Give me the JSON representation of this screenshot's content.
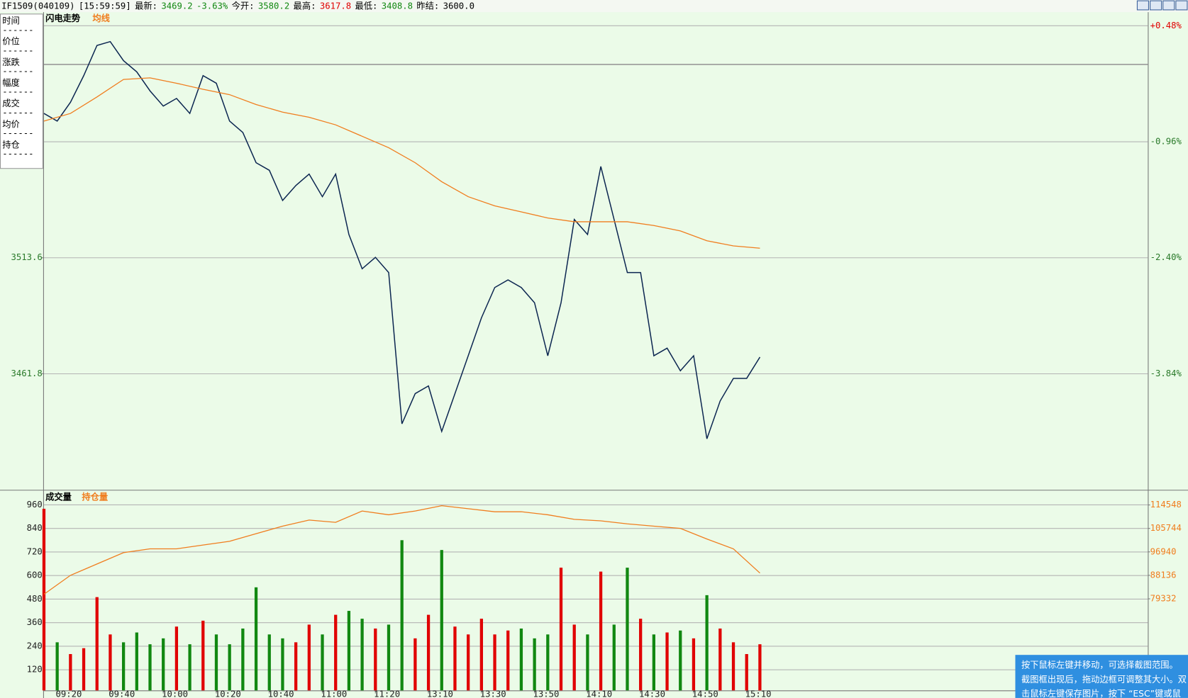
{
  "header": [
    {
      "text": "IF1509(040109)",
      "color": "#000000"
    },
    {
      "text": "[15:59:59]",
      "color": "#000000"
    },
    {
      "text": "最新:",
      "color": "#000000"
    },
    {
      "text": "3469.2",
      "color": "#118811"
    },
    {
      "text": "-3.63%",
      "color": "#118811"
    },
    {
      "text": "今开:",
      "color": "#000000"
    },
    {
      "text": "3580.2",
      "color": "#118811"
    },
    {
      "text": "最高:",
      "color": "#000000"
    },
    {
      "text": "3617.8",
      "color": "#e00000"
    },
    {
      "text": "最低:",
      "color": "#000000"
    },
    {
      "text": "3408.8",
      "color": "#118811"
    },
    {
      "text": "昨结:",
      "color": "#000000"
    },
    {
      "text": "3600.0",
      "color": "#000000"
    }
  ],
  "side_panel": [
    {
      "label": "时间",
      "value": "------"
    },
    {
      "label": "价位",
      "value": "------"
    },
    {
      "label": "涨跌",
      "value": "------"
    },
    {
      "label": "幅度",
      "value": "------"
    },
    {
      "label": "成交",
      "value": "------"
    },
    {
      "label": "均价",
      "value": "------"
    },
    {
      "label": "持仓",
      "value": "------"
    }
  ],
  "chart_data": [
    {
      "type": "line",
      "title": "闪电走势",
      "x": [
        0,
        5,
        10,
        15,
        20,
        25,
        30,
        35,
        40,
        45,
        50,
        55,
        60,
        65,
        70,
        75,
        80,
        85,
        90,
        95,
        100,
        105,
        110,
        115,
        120,
        125,
        130,
        135,
        140,
        145,
        150,
        155,
        160,
        165,
        170,
        175,
        180,
        185,
        190,
        195,
        200,
        205,
        210,
        215,
        220,
        225,
        230,
        235,
        240,
        245,
        250,
        255,
        260,
        265,
        270
      ],
      "series": [
        {
          "color": "#0b2550",
          "values": [
            3578.1,
            3574.7,
            3583.1,
            3595.0,
            3608.5,
            3610.2,
            3601.7,
            3596.7,
            3588.2,
            3581.4,
            3584.8,
            3578.1,
            3595.0,
            3591.6,
            3574.7,
            3569.6,
            3556.1,
            3552.7,
            3539.2,
            3545.9,
            3551.0,
            3540.9,
            3551.0,
            3524.0,
            3508.7,
            3513.8,
            3507.0,
            3439.4,
            3452.9,
            3456.3,
            3436.0,
            3452.9,
            3469.8,
            3486.8,
            3500.3,
            3503.7,
            3500.3,
            3493.5,
            3469.8,
            3493.5,
            3530.7,
            3524.0,
            3554.4,
            3530.7,
            3507.0,
            3507.0,
            3469.8,
            3473.2,
            3463.1,
            3469.8,
            3432.7,
            3449.6,
            3459.7,
            3459.7,
            3469.2
          ]
        },
        {
          "name": "均线",
          "color": "#f07d1e",
          "x": [
            0,
            10,
            20,
            30,
            40,
            50,
            60,
            70,
            80,
            90,
            100,
            110,
            120,
            130,
            140,
            150,
            160,
            170,
            180,
            190,
            200,
            210,
            220,
            230,
            240,
            250,
            260,
            270
          ],
          "values": [
            3574.7,
            3578.1,
            3585.5,
            3593.3,
            3594.0,
            3591.6,
            3588.9,
            3586.5,
            3582.1,
            3578.7,
            3576.4,
            3573.0,
            3567.9,
            3562.8,
            3556.1,
            3547.6,
            3540.9,
            3536.8,
            3534.1,
            3531.4,
            3529.7,
            3529.7,
            3529.7,
            3528.0,
            3525.6,
            3521.2,
            3518.9,
            3517.9
          ]
        }
      ],
      "baseline": 3600,
      "xlim": [
        0,
        416.3
      ],
      "ylim": [
        3409.9,
        3622.7
      ],
      "yticks": [
        3513.6,
        3461.8
      ],
      "y2lim": [
        -5.28,
        0.63
      ],
      "y2ticks": [
        {
          "value": 0.48,
          "label": "+0.48%"
        },
        {
          "value": -0.96,
          "label": "-0.96%"
        },
        {
          "value": -2.4,
          "label": "-2.40%"
        },
        {
          "value": -3.84,
          "label": "-3.84%"
        }
      ],
      "grid": true,
      "up_color": "#e00000",
      "down_color": "#2a7a2a"
    },
    {
      "type": "bar",
      "x": [
        0,
        5,
        10,
        15,
        20,
        25,
        30,
        35,
        40,
        45,
        50,
        55,
        60,
        65,
        70,
        75,
        80,
        85,
        90,
        95,
        100,
        105,
        110,
        115,
        120,
        125,
        130,
        135,
        140,
        145,
        150,
        155,
        160,
        165,
        170,
        175,
        180,
        185,
        190,
        195,
        200,
        205,
        210,
        215,
        220,
        225,
        230,
        235,
        240,
        245,
        250,
        255,
        260,
        265,
        270
      ],
      "xlim": [
        0,
        416.3
      ],
      "xticks": [
        {
          "value": 5,
          "label": "09:20"
        },
        {
          "value": 25,
          "label": "09:40"
        },
        {
          "value": 45,
          "label": "10:00"
        },
        {
          "value": 65,
          "label": "10:20"
        },
        {
          "value": 85,
          "label": "10:40"
        },
        {
          "value": 105,
          "label": "11:00"
        },
        {
          "value": 125,
          "label": "11:20"
        },
        {
          "value": 145,
          "label": "13:10"
        },
        {
          "value": 165,
          "label": "13:30"
        },
        {
          "value": 185,
          "label": "13:50"
        },
        {
          "value": 205,
          "label": "14:10"
        },
        {
          "value": 225,
          "label": "14:30"
        },
        {
          "value": 245,
          "label": "14:50"
        },
        {
          "value": 265,
          "label": "15:10"
        }
      ],
      "series": [
        {
          "name": "成交量",
          "color": "#000000",
          "values": [
            940,
            260,
            200,
            230,
            490,
            300,
            260,
            310,
            250,
            280,
            340,
            250,
            370,
            300,
            250,
            330,
            540,
            300,
            280,
            260,
            350,
            300,
            400,
            420,
            380,
            330,
            350,
            780,
            280,
            400,
            730,
            340,
            300,
            380,
            300,
            320,
            330,
            280,
            300,
            640,
            350,
            300,
            620,
            350,
            640,
            380,
            300,
            310,
            320,
            280,
            500,
            330,
            260,
            200,
            250
          ]
        },
        {
          "name": "持仓量",
          "color": "#f07d1e",
          "axis": "y2",
          "x": [
            0,
            10,
            20,
            30,
            40,
            50,
            60,
            70,
            80,
            90,
            100,
            110,
            120,
            130,
            140,
            150,
            160,
            170,
            180,
            190,
            200,
            210,
            220,
            230,
            240,
            250,
            260,
            270
          ],
          "values": [
            81036,
            88136,
            92396,
            96656,
            98076,
            98076,
            99496,
            100916,
            103756,
            106596,
            108868,
            108016,
            112276,
            110856,
            112276,
            114264,
            113128,
            111992,
            111992,
            110856,
            109152,
            108584,
            107448,
            106596,
            105744,
            101768,
            98076,
            88988
          ]
        }
      ],
      "ylim": [
        15,
        1025
      ],
      "yticks": [
        120,
        240,
        360,
        480,
        600,
        720,
        840,
        960
      ],
      "y2lim": [
        44968,
        119376
      ],
      "y2ticks": [
        114548,
        105744,
        96940,
        88136,
        79332
      ],
      "grid": true,
      "up_color": "#e00000",
      "down_color": "#118811"
    }
  ],
  "tooltip": [
    "按下鼠标左键并移动，可选择截图范围。",
    "截图框出现后，拖动边框可调整其大小。双",
    "击鼠标左键保存图片，按下 “ESC”键或鼠"
  ]
}
